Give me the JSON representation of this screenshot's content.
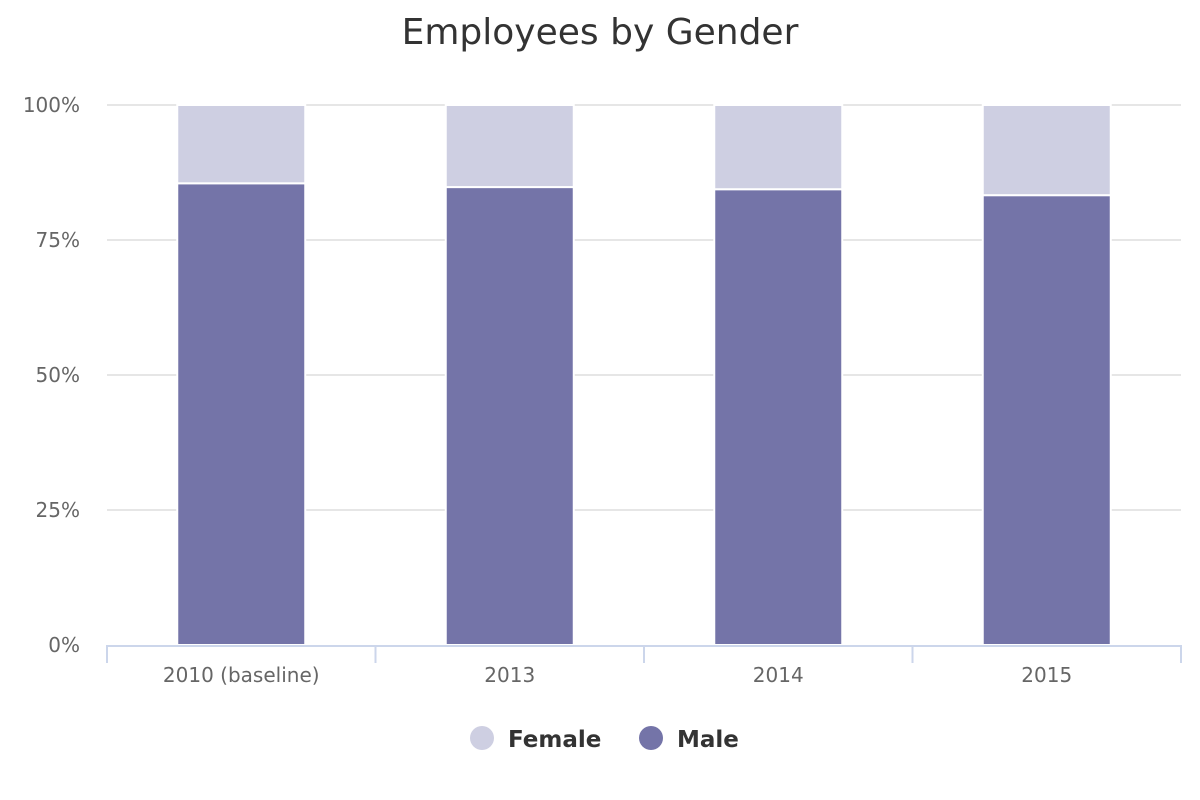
{
  "chart_data": {
    "type": "bar",
    "stacked": true,
    "title": "Employees by Gender",
    "xlabel": "",
    "ylabel": "",
    "categories": [
      "2010 (baseline)",
      "2013",
      "2014",
      "2015"
    ],
    "y_ticks": [
      "0%",
      "25%",
      "50%",
      "75%",
      "100%"
    ],
    "ylim": [
      0,
      100
    ],
    "grid": true,
    "legend_position": "bottom",
    "series": [
      {
        "name": "Male",
        "color": "#7474a8",
        "values": [
          85.5,
          84.8,
          84.4,
          83.3
        ]
      },
      {
        "name": "Female",
        "color": "#cecfe2",
        "values": [
          14.5,
          15.2,
          15.6,
          16.7
        ]
      }
    ],
    "legend": [
      {
        "name": "Female",
        "color": "#cecfe2"
      },
      {
        "name": "Male",
        "color": "#7474a8"
      }
    ]
  }
}
